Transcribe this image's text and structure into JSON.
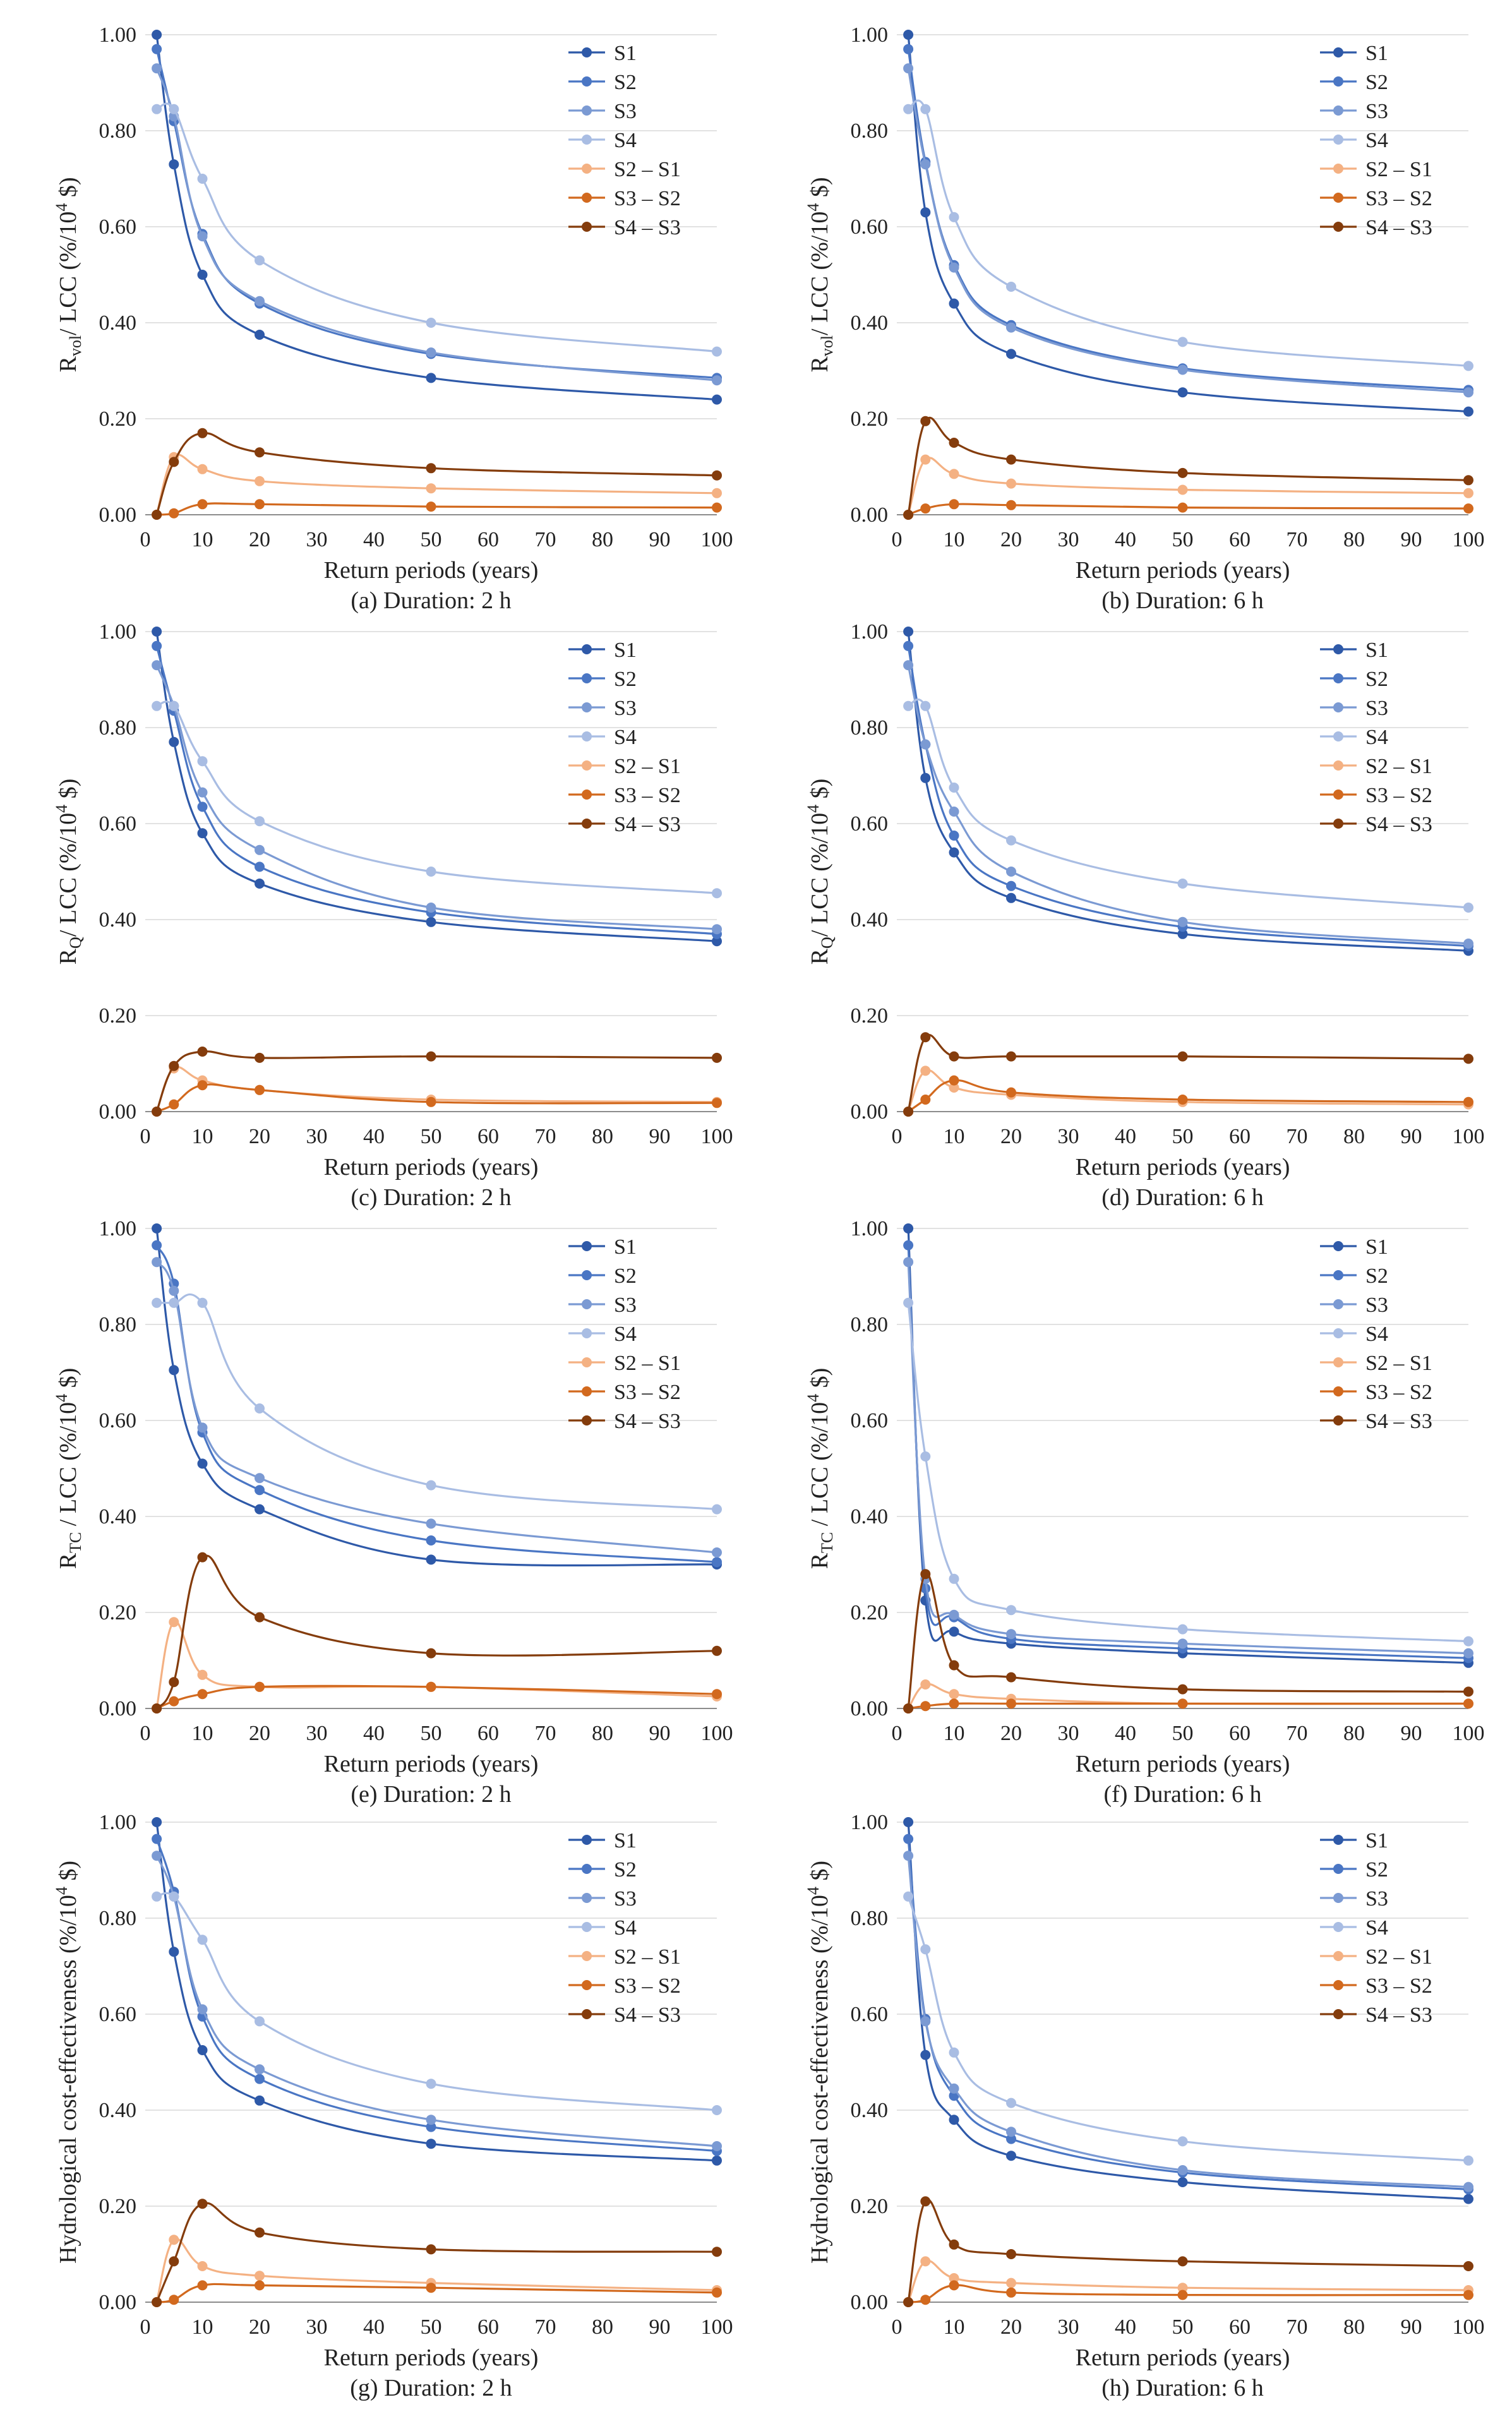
{
  "figure": {
    "xlabel": "Return periods (years)",
    "x": [
      2,
      5,
      10,
      20,
      50,
      100
    ],
    "xticks": [
      0,
      10,
      20,
      30,
      40,
      50,
      60,
      70,
      80,
      90,
      100
    ],
    "yticks": [
      "0.00",
      "0.20",
      "0.40",
      "0.60",
      "0.80",
      "1.00"
    ],
    "series_names": [
      "S1",
      "S2",
      "S3",
      "S4",
      "S2 – S1",
      "S3 – S2",
      "S4 – S3"
    ],
    "series_colors": [
      "#2e59a8",
      "#4a76c4",
      "#7b9ad3",
      "#a9bde3",
      "#f4b183",
      "#d2691e",
      "#843c0c"
    ]
  },
  "chart_data": [
    {
      "type": "line",
      "caption": "(a) Duration: 2 h",
      "ylabel": {
        "pre": "R",
        "sub": "vol",
        "post": "/ LCC (%/10",
        "sup": "4",
        "end": " $)"
      },
      "xlim": [
        0,
        100
      ],
      "ylim": [
        0,
        1
      ],
      "series": [
        {
          "name": "S1",
          "values": [
            1.0,
            0.73,
            0.5,
            0.375,
            0.285,
            0.24
          ]
        },
        {
          "name": "S2",
          "values": [
            0.97,
            0.82,
            0.585,
            0.44,
            0.335,
            0.285
          ]
        },
        {
          "name": "S3",
          "values": [
            0.93,
            0.83,
            0.58,
            0.445,
            0.338,
            0.28
          ]
        },
        {
          "name": "S4",
          "values": [
            0.845,
            0.845,
            0.7,
            0.53,
            0.4,
            0.34
          ]
        },
        {
          "name": "S2 – S1",
          "values": [
            0.0,
            0.12,
            0.095,
            0.07,
            0.055,
            0.045
          ]
        },
        {
          "name": "S3 – S2",
          "values": [
            0.0,
            0.003,
            0.022,
            0.022,
            0.017,
            0.015
          ]
        },
        {
          "name": "S4 – S3",
          "values": [
            0.0,
            0.11,
            0.17,
            0.13,
            0.097,
            0.082
          ]
        }
      ]
    },
    {
      "type": "line",
      "caption": "(b) Duration: 6 h",
      "ylabel": {
        "pre": "R",
        "sub": "vol",
        "post": "/ LCC (%/10",
        "sup": "4",
        "end": " $)"
      },
      "xlim": [
        0,
        100
      ],
      "ylim": [
        0,
        1
      ],
      "series": [
        {
          "name": "S1",
          "values": [
            1.0,
            0.63,
            0.44,
            0.335,
            0.255,
            0.215
          ]
        },
        {
          "name": "S2",
          "values": [
            0.97,
            0.735,
            0.52,
            0.395,
            0.305,
            0.26
          ]
        },
        {
          "name": "S3",
          "values": [
            0.93,
            0.73,
            0.515,
            0.39,
            0.302,
            0.255
          ]
        },
        {
          "name": "S4",
          "values": [
            0.845,
            0.845,
            0.62,
            0.475,
            0.36,
            0.31
          ]
        },
        {
          "name": "S2 – S1",
          "values": [
            0.0,
            0.115,
            0.085,
            0.065,
            0.052,
            0.045
          ]
        },
        {
          "name": "S3 – S2",
          "values": [
            0.0,
            0.013,
            0.022,
            0.02,
            0.015,
            0.013
          ]
        },
        {
          "name": "S4 – S3",
          "values": [
            0.0,
            0.195,
            0.15,
            0.115,
            0.087,
            0.072
          ]
        }
      ]
    },
    {
      "type": "line",
      "caption": "(c) Duration: 2 h",
      "ylabel": {
        "pre": "R",
        "sub": "Q",
        "post": "/ LCC (%/10",
        "sup": "4",
        "end": " $)"
      },
      "xlim": [
        0,
        100
      ],
      "ylim": [
        0,
        1
      ],
      "series": [
        {
          "name": "S1",
          "values": [
            1.0,
            0.77,
            0.58,
            0.475,
            0.395,
            0.355
          ]
        },
        {
          "name": "S2",
          "values": [
            0.97,
            0.835,
            0.635,
            0.51,
            0.415,
            0.37
          ]
        },
        {
          "name": "S3",
          "values": [
            0.93,
            0.845,
            0.665,
            0.545,
            0.425,
            0.38
          ]
        },
        {
          "name": "S4",
          "values": [
            0.845,
            0.845,
            0.73,
            0.605,
            0.5,
            0.455
          ]
        },
        {
          "name": "S2 – S1",
          "values": [
            0.0,
            0.09,
            0.065,
            0.045,
            0.025,
            0.02
          ]
        },
        {
          "name": "S3 – S2",
          "values": [
            0.0,
            0.015,
            0.055,
            0.045,
            0.02,
            0.018
          ]
        },
        {
          "name": "S4 – S3",
          "values": [
            0.0,
            0.095,
            0.125,
            0.112,
            0.115,
            0.112
          ]
        }
      ]
    },
    {
      "type": "line",
      "caption": "(d) Duration: 6 h",
      "ylabel": {
        "pre": "R",
        "sub": "Q",
        "post": "/ LCC (%/10",
        "sup": "4",
        "end": " $)"
      },
      "xlim": [
        0,
        100
      ],
      "ylim": [
        0,
        1
      ],
      "series": [
        {
          "name": "S1",
          "values": [
            1.0,
            0.695,
            0.54,
            0.445,
            0.37,
            0.335
          ]
        },
        {
          "name": "S2",
          "values": [
            0.97,
            0.765,
            0.575,
            0.47,
            0.385,
            0.345
          ]
        },
        {
          "name": "S3",
          "values": [
            0.93,
            0.765,
            0.625,
            0.5,
            0.395,
            0.35
          ]
        },
        {
          "name": "S4",
          "values": [
            0.845,
            0.845,
            0.675,
            0.565,
            0.475,
            0.425
          ]
        },
        {
          "name": "S2 – S1",
          "values": [
            0.0,
            0.085,
            0.05,
            0.035,
            0.02,
            0.015
          ]
        },
        {
          "name": "S3 – S2",
          "values": [
            0.0,
            0.025,
            0.065,
            0.04,
            0.025,
            0.02
          ]
        },
        {
          "name": "S4 – S3",
          "values": [
            0.0,
            0.155,
            0.115,
            0.115,
            0.115,
            0.11
          ]
        }
      ]
    },
    {
      "type": "line",
      "caption": "(e) Duration: 2 h",
      "ylabel": {
        "pre": "R",
        "sub": "TC",
        "post": " / LCC (%/10",
        "sup": "4",
        "end": " $)"
      },
      "xlim": [
        0,
        100
      ],
      "ylim": [
        0,
        1
      ],
      "series": [
        {
          "name": "S1",
          "values": [
            1.0,
            0.705,
            0.51,
            0.415,
            0.31,
            0.3
          ]
        },
        {
          "name": "S2",
          "values": [
            0.965,
            0.885,
            0.575,
            0.455,
            0.35,
            0.305
          ]
        },
        {
          "name": "S3",
          "values": [
            0.93,
            0.87,
            0.585,
            0.48,
            0.385,
            0.325
          ]
        },
        {
          "name": "S4",
          "values": [
            0.845,
            0.845,
            0.845,
            0.625,
            0.465,
            0.415
          ]
        },
        {
          "name": "S2 – S1",
          "values": [
            0.0,
            0.18,
            0.07,
            0.045,
            0.045,
            0.025
          ]
        },
        {
          "name": "S3 – S2",
          "values": [
            0.0,
            0.015,
            0.03,
            0.045,
            0.045,
            0.03
          ]
        },
        {
          "name": "S4 – S3",
          "values": [
            0.0,
            0.055,
            0.315,
            0.19,
            0.115,
            0.12
          ]
        }
      ]
    },
    {
      "type": "line",
      "caption": "(f) Duration: 6 h",
      "ylabel": {
        "pre": "R",
        "sub": "TC",
        "post": " / LCC (%/10",
        "sup": "4",
        "end": " $)"
      },
      "xlim": [
        0,
        100
      ],
      "ylim": [
        0,
        1
      ],
      "series": [
        {
          "name": "S1",
          "values": [
            1.0,
            0.225,
            0.16,
            0.135,
            0.115,
            0.095
          ]
        },
        {
          "name": "S2",
          "values": [
            0.965,
            0.25,
            0.19,
            0.145,
            0.125,
            0.105
          ]
        },
        {
          "name": "S3",
          "values": [
            0.93,
            0.27,
            0.195,
            0.155,
            0.135,
            0.115
          ]
        },
        {
          "name": "S4",
          "values": [
            0.845,
            0.525,
            0.27,
            0.205,
            0.165,
            0.14
          ]
        },
        {
          "name": "S2 – S1",
          "values": [
            0.0,
            0.05,
            0.03,
            0.02,
            0.01,
            0.01
          ]
        },
        {
          "name": "S3 – S2",
          "values": [
            0.0,
            0.005,
            0.01,
            0.01,
            0.01,
            0.01
          ]
        },
        {
          "name": "S4 – S3",
          "values": [
            0.0,
            0.28,
            0.09,
            0.065,
            0.04,
            0.035
          ]
        }
      ]
    },
    {
      "type": "line",
      "caption": "(g) Duration: 2 h",
      "ylabel": {
        "pre": "Hydrological cost-effectiveness (%/10",
        "sup": "4",
        "end": " $)"
      },
      "xlim": [
        0,
        100
      ],
      "ylim": [
        0,
        1
      ],
      "series": [
        {
          "name": "S1",
          "values": [
            1.0,
            0.73,
            0.525,
            0.42,
            0.33,
            0.295
          ]
        },
        {
          "name": "S2",
          "values": [
            0.965,
            0.855,
            0.595,
            0.465,
            0.365,
            0.315
          ]
        },
        {
          "name": "S3",
          "values": [
            0.93,
            0.845,
            0.61,
            0.485,
            0.38,
            0.325
          ]
        },
        {
          "name": "S4",
          "values": [
            0.845,
            0.845,
            0.755,
            0.585,
            0.455,
            0.4
          ]
        },
        {
          "name": "S2 – S1",
          "values": [
            0.0,
            0.13,
            0.075,
            0.055,
            0.04,
            0.025
          ]
        },
        {
          "name": "S3 – S2",
          "values": [
            0.0,
            0.005,
            0.035,
            0.035,
            0.03,
            0.02
          ]
        },
        {
          "name": "S4 – S3",
          "values": [
            0.0,
            0.085,
            0.205,
            0.145,
            0.11,
            0.105
          ]
        }
      ]
    },
    {
      "type": "line",
      "caption": "(h) Duration: 6 h",
      "ylabel": {
        "pre": "Hydrological cost-effectiveness (%/10",
        "sup": "4",
        "end": " $)"
      },
      "xlim": [
        0,
        100
      ],
      "ylim": [
        0,
        1
      ],
      "series": [
        {
          "name": "S1",
          "values": [
            1.0,
            0.515,
            0.38,
            0.305,
            0.25,
            0.215
          ]
        },
        {
          "name": "S2",
          "values": [
            0.965,
            0.59,
            0.43,
            0.34,
            0.27,
            0.235
          ]
        },
        {
          "name": "S3",
          "values": [
            0.93,
            0.585,
            0.445,
            0.355,
            0.275,
            0.24
          ]
        },
        {
          "name": "S4",
          "values": [
            0.845,
            0.735,
            0.52,
            0.415,
            0.335,
            0.295
          ]
        },
        {
          "name": "S2 – S1",
          "values": [
            0.0,
            0.085,
            0.05,
            0.04,
            0.03,
            0.025
          ]
        },
        {
          "name": "S3 – S2",
          "values": [
            0.0,
            0.005,
            0.035,
            0.02,
            0.015,
            0.015
          ]
        },
        {
          "name": "S4 – S3",
          "values": [
            0.0,
            0.21,
            0.12,
            0.1,
            0.085,
            0.075
          ]
        }
      ]
    }
  ]
}
